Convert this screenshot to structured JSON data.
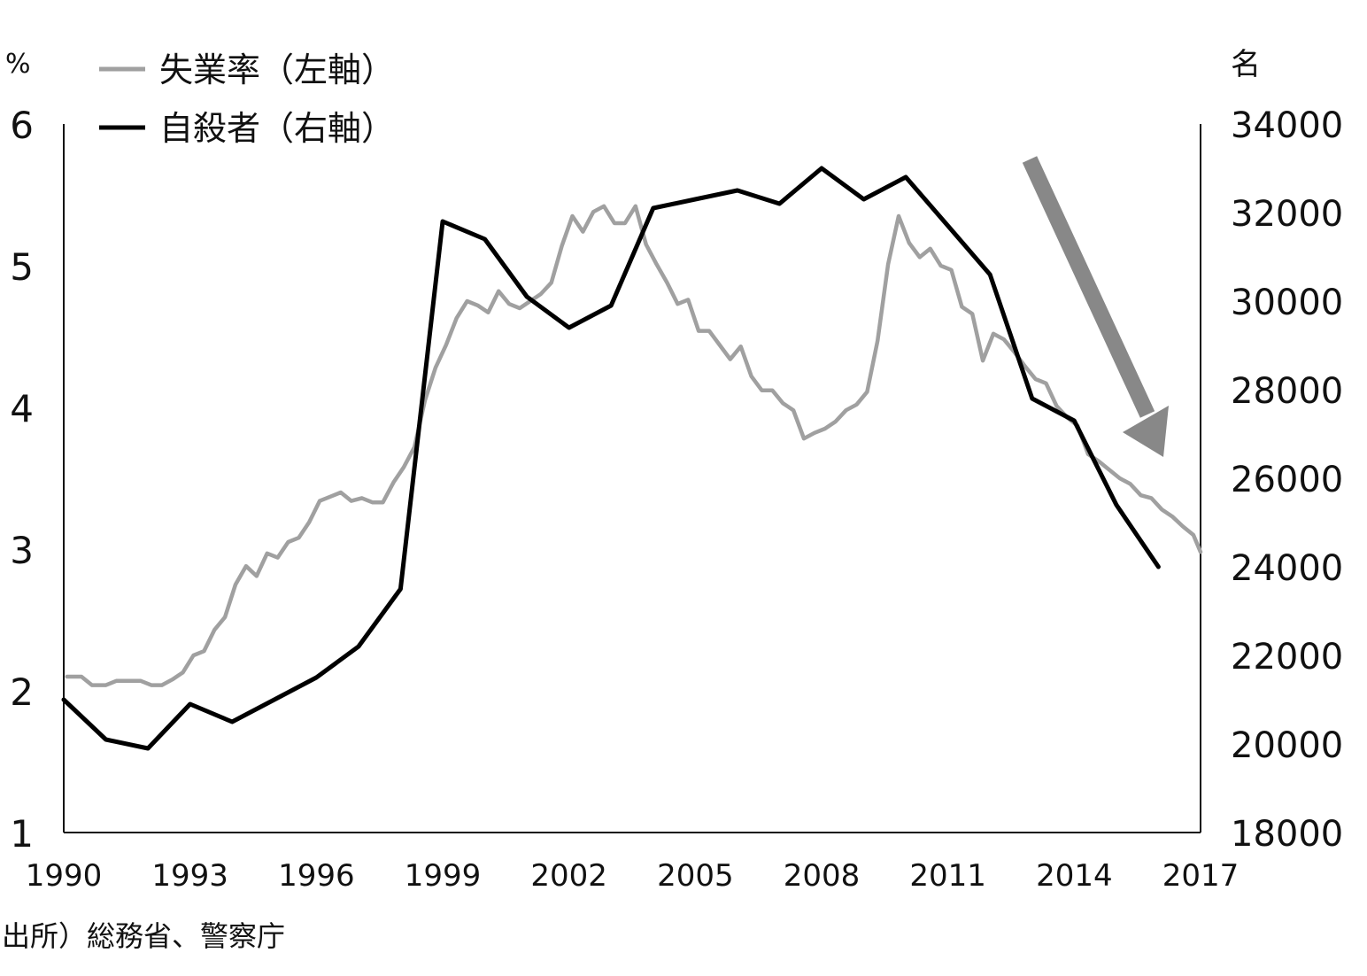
{
  "chart_data": {
    "type": "line",
    "left_unit": "%",
    "right_unit": "名",
    "left_ylim": [
      1,
      6
    ],
    "left_ticks": [
      "1",
      "2",
      "3",
      "4",
      "5",
      "6"
    ],
    "right_ylim": [
      18000,
      34000
    ],
    "right_ticks": [
      "18000",
      "20000",
      "22000",
      "24000",
      "26000",
      "28000",
      "30000",
      "32000",
      "34000"
    ],
    "x_ticks": [
      "1990",
      "1993",
      "1996",
      "1999",
      "2002",
      "2005",
      "2008",
      "2011",
      "2014",
      "2017"
    ],
    "xlim": [
      1990,
      2017
    ],
    "grid": false,
    "legend_position": "top-left",
    "source": "出所）総務省、警察庁",
    "series": [
      {
        "name": "失業率（左軸）",
        "axis": "left",
        "color": "#a0a0a0",
        "x": [
          1990.08,
          1990.42,
          1990.67,
          1991.0,
          1991.25,
          1991.58,
          1991.83,
          1992.08,
          1992.33,
          1992.58,
          1992.83,
          1993.08,
          1993.33,
          1993.58,
          1993.83,
          1994.08,
          1994.33,
          1994.58,
          1994.83,
          1995.08,
          1995.33,
          1995.58,
          1995.83,
          1996.08,
          1996.33,
          1996.58,
          1996.83,
          1997.08,
          1997.33,
          1997.58,
          1997.83,
          1998.08,
          1998.33,
          1998.58,
          1998.83,
          1999.08,
          1999.33,
          1999.58,
          1999.83,
          2000.08,
          2000.33,
          2000.58,
          2000.83,
          2001.08,
          2001.33,
          2001.58,
          2001.83,
          2002.08,
          2002.33,
          2002.58,
          2002.83,
          2003.08,
          2003.33,
          2003.58,
          2003.83,
          2004.08,
          2004.33,
          2004.58,
          2004.83,
          2005.08,
          2005.33,
          2005.58,
          2005.83,
          2006.08,
          2006.33,
          2006.58,
          2006.83,
          2007.08,
          2007.33,
          2007.58,
          2007.83,
          2008.08,
          2008.33,
          2008.58,
          2008.83,
          2009.08,
          2009.33,
          2009.58,
          2009.83,
          2010.08,
          2010.33,
          2010.58,
          2010.83,
          2011.08,
          2011.33,
          2011.58,
          2011.83,
          2012.08,
          2012.33,
          2012.58,
          2012.83,
          2013.08,
          2013.33,
          2013.58,
          2013.83,
          2014.08,
          2014.33,
          2014.58,
          2014.83,
          2015.08,
          2015.33,
          2015.58,
          2015.83,
          2016.08,
          2016.33,
          2016.58,
          2016.83,
          2017.0
        ],
        "values": [
          2.1,
          2.1,
          2.04,
          2.04,
          2.07,
          2.07,
          2.07,
          2.04,
          2.04,
          2.08,
          2.13,
          2.25,
          2.28,
          2.43,
          2.52,
          2.75,
          2.88,
          2.81,
          2.97,
          2.94,
          3.05,
          3.08,
          3.19,
          3.34,
          3.37,
          3.4,
          3.34,
          3.36,
          3.33,
          3.33,
          3.47,
          3.58,
          3.72,
          4.05,
          4.28,
          4.44,
          4.63,
          4.75,
          4.72,
          4.67,
          4.82,
          4.73,
          4.7,
          4.75,
          4.8,
          4.88,
          5.14,
          5.35,
          5.24,
          5.38,
          5.42,
          5.3,
          5.3,
          5.42,
          5.15,
          5.01,
          4.88,
          4.73,
          4.76,
          4.54,
          4.54,
          4.44,
          4.34,
          4.43,
          4.22,
          4.12,
          4.12,
          4.03,
          3.98,
          3.78,
          3.82,
          3.85,
          3.9,
          3.98,
          4.02,
          4.11,
          4.47,
          5.01,
          5.35,
          5.16,
          5.06,
          5.12,
          5.0,
          4.97,
          4.71,
          4.66,
          4.33,
          4.52,
          4.48,
          4.39,
          4.29,
          4.2,
          4.17,
          4.01,
          3.93,
          3.87,
          3.67,
          3.62,
          3.56,
          3.5,
          3.46,
          3.38,
          3.36,
          3.28,
          3.23,
          3.16,
          3.1,
          2.98
        ]
      },
      {
        "name": "自殺者（右軸）",
        "axis": "right",
        "color": "#000000",
        "x": [
          1990,
          1991,
          1992,
          1993,
          1994,
          1995,
          1996,
          1997,
          1998,
          1999,
          2000,
          2001,
          2002,
          2003,
          2004,
          2005,
          2006,
          2007,
          2008,
          2009,
          2010,
          2011,
          2012,
          2013,
          2014,
          2015,
          2016
        ],
        "values": [
          21000,
          20100,
          19900,
          20900,
          20500,
          21000,
          21500,
          22200,
          23500,
          31800,
          31400,
          30100,
          29400,
          29900,
          32100,
          32300,
          32500,
          32200,
          33000,
          32300,
          32800,
          31700,
          30600,
          27800,
          27300,
          25400,
          24000
        ]
      }
    ],
    "annotation": {
      "type": "arrow",
      "color": "#888888",
      "direction": "down-right"
    }
  }
}
